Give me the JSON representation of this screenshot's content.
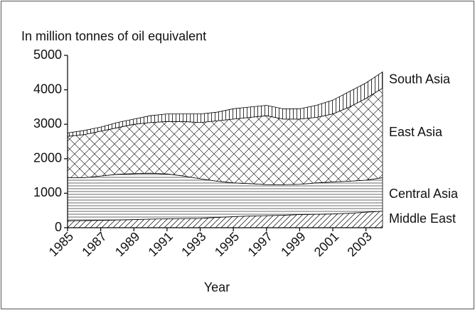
{
  "chart_data": {
    "type": "stacked_area",
    "title": "In million tonnes of oil equivalent",
    "xlabel": "Year",
    "x": [
      1985,
      1986,
      1987,
      1988,
      1989,
      1990,
      1991,
      1992,
      1993,
      1994,
      1995,
      1996,
      1997,
      1998,
      1999,
      2000,
      2001,
      2002,
      2003,
      2004
    ],
    "series": [
      {
        "name": "Middle East",
        "color": "#000000",
        "hatch": "diagonal",
        "values": [
          200,
          205,
          215,
          225,
          235,
          250,
          260,
          265,
          270,
          300,
          320,
          340,
          350,
          360,
          380,
          390,
          400,
          420,
          450,
          480
        ]
      },
      {
        "name": "Central Asia",
        "color": "#000000",
        "hatch": "horizontal",
        "values": [
          1250,
          1245,
          1285,
          1325,
          1335,
          1330,
          1300,
          1235,
          1150,
          1050,
          980,
          940,
          900,
          890,
          880,
          910,
          930,
          930,
          930,
          970
        ]
      },
      {
        "name": "East Asia",
        "color": "#000000",
        "hatch": "cross",
        "values": [
          1200,
          1250,
          1300,
          1350,
          1430,
          1470,
          1520,
          1580,
          1630,
          1750,
          1850,
          1920,
          2000,
          1900,
          1890,
          1900,
          1970,
          2150,
          2370,
          2600
        ]
      },
      {
        "name": "South Asia",
        "color": "#000000",
        "hatch": "vertical",
        "values": [
          100,
          120,
          120,
          150,
          150,
          200,
          220,
          220,
          250,
          250,
          300,
          300,
          300,
          300,
          300,
          350,
          400,
          450,
          450,
          470
        ]
      }
    ],
    "xlim": [
      1985,
      2004
    ],
    "xticks": [
      1985,
      1987,
      1989,
      1991,
      1993,
      1995,
      1997,
      1999,
      2001,
      2003
    ],
    "ylim": [
      0,
      5000
    ],
    "yticks": [
      0,
      1000,
      2000,
      3000,
      4000,
      5000
    ],
    "grid": false
  }
}
